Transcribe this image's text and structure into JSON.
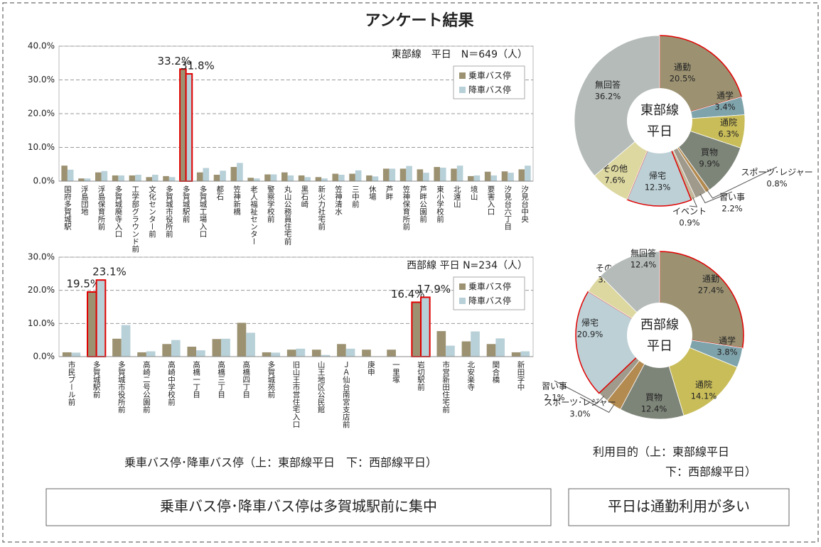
{
  "title": "アンケート結果",
  "captions": [
    "乗車バス停･降車バス停（上：東部線平日　下：西部線平日）",
    "利用目的（上：東部線平日",
    "下：西部線平日）"
  ],
  "summaries": [
    "乗車バス停･降車バス停は多賀城駅前に集中",
    "平日は通勤利用が多い"
  ],
  "chart_data": [
    {
      "type": "bar",
      "annotation": "東部線　平日　N＝649（人）",
      "categories": [
        "国府多賀城駅",
        "浮島団地",
        "浮島保育所前",
        "多賀城廃寺入口",
        "工学部グラウンド前",
        "文化センター前",
        "多賀城市役所前",
        "多賀城駅前",
        "多賀城工場入口",
        "都石",
        "笠神新橋",
        "老人福祉センター",
        "警察学校前",
        "丸山公務員住宅前",
        "黒石崎",
        "新火力社宅前",
        "笠神清水",
        "三中前",
        "休場",
        "芦畔",
        "笠神保育所前",
        "芦畔公園前",
        "東小学校前",
        "北遠山",
        "境山",
        "要害入口",
        "汐見台六丁目",
        "汐見台中央"
      ],
      "series": [
        {
          "name": "乗車バス停",
          "color": "#9c9272",
          "values": [
            4.6,
            0.8,
            2.6,
            1.7,
            1.7,
            1.2,
            1.5,
            33.2,
            2.6,
            1.9,
            4.2,
            1.0,
            2.0,
            2.6,
            1.7,
            1.2,
            2.2,
            2.2,
            1.7,
            3.7,
            3.7,
            3.5,
            4.2,
            3.7,
            1.5,
            2.8,
            2.9,
            3.5
          ],
          "value_labels": [
            null,
            null,
            null,
            null,
            null,
            null,
            null,
            "33.2%",
            null,
            null,
            null,
            null,
            null,
            null,
            null,
            null,
            null,
            null,
            null,
            null,
            null,
            null,
            null,
            null,
            null,
            null,
            null,
            null
          ]
        },
        {
          "name": "降車バス停",
          "color": "#b8d0d8",
          "values": [
            3.4,
            0.8,
            3.0,
            1.7,
            1.9,
            1.9,
            1.2,
            31.8,
            3.9,
            3.1,
            5.4,
            0.8,
            2.0,
            1.7,
            1.2,
            0.8,
            1.9,
            3.2,
            1.4,
            3.7,
            4.5,
            2.5,
            4.0,
            4.6,
            1.7,
            1.7,
            2.5,
            4.6
          ],
          "value_labels": [
            null,
            null,
            null,
            null,
            null,
            null,
            null,
            "31.8%",
            null,
            null,
            null,
            null,
            null,
            null,
            null,
            null,
            null,
            null,
            null,
            null,
            null,
            null,
            null,
            null,
            null,
            null,
            null,
            null
          ]
        }
      ],
      "highlight_categories": [
        "多賀城駅前"
      ],
      "highlight_color": "#e00000",
      "ylim": [
        0,
        40
      ],
      "yticks": [
        {
          "value": 0,
          "label": "0.0%"
        },
        {
          "value": 10,
          "label": "10.0%"
        },
        {
          "value": 20,
          "label": "20.0%"
        },
        {
          "value": 30,
          "label": "30.0%"
        },
        {
          "value": 40,
          "label": "40.0%"
        }
      ],
      "grid": true,
      "legend": "upper right"
    },
    {
      "type": "bar",
      "annotation": "西部線 平日 N=234（人）",
      "categories": [
        "市民プール前",
        "多賀城駅前",
        "多賀城市役所前",
        "高崎二号公園前",
        "高崎中学校前",
        "高橋一丁目",
        "高橋三丁目",
        "高橋四丁目",
        "多賀城苑前",
        "旧山王市営住宅入口",
        "山王地区公民館",
        "ＪＡ仙台南宮支店前",
        "庚申",
        "一里塚",
        "岩切駅前",
        "市営新田住宅前",
        "北安楽寺",
        "関合橋",
        "新田字中"
      ],
      "series": [
        {
          "name": "乗車バス停",
          "color": "#9c9272",
          "values": [
            1.3,
            19.5,
            5.4,
            1.3,
            3.8,
            3.0,
            5.3,
            10.2,
            1.3,
            2.1,
            2.1,
            3.8,
            2.1,
            2.1,
            16.4,
            7.7,
            4.6,
            3.8,
            1.3
          ],
          "value_labels": [
            null,
            "19.5%",
            null,
            null,
            null,
            null,
            null,
            null,
            null,
            null,
            null,
            null,
            null,
            null,
            "16.4%",
            null,
            null,
            null,
            null
          ]
        },
        {
          "name": "降車バス停",
          "color": "#b8d0d8",
          "values": [
            1.2,
            23.1,
            9.5,
            1.6,
            5.0,
            1.9,
            5.4,
            7.2,
            1.2,
            2.4,
            0.5,
            2.4,
            0,
            0,
            17.9,
            3.3,
            7.6,
            5.5,
            1.6
          ],
          "value_labels": [
            null,
            "23.1%",
            null,
            null,
            null,
            null,
            null,
            null,
            null,
            null,
            null,
            null,
            null,
            null,
            "17.9%",
            null,
            null,
            null,
            null
          ]
        }
      ],
      "highlight_categories": [
        "多賀城駅前",
        "岩切駅前"
      ],
      "highlight_color": "#e00000",
      "ylim": [
        0,
        30
      ],
      "yticks": [
        {
          "value": 0,
          "label": "0.0%"
        },
        {
          "value": 10,
          "label": "10.0%"
        },
        {
          "value": 20,
          "label": "20.0%"
        },
        {
          "value": 30,
          "label": "30.0%"
        }
      ],
      "grid": true,
      "legend": "upper right"
    },
    {
      "type": "pie",
      "center_text": [
        "東部線",
        "平日"
      ],
      "categories": [
        "通勤",
        "通学",
        "通院",
        "買物",
        "スポーツ･レジャー",
        "習い事",
        "イベント",
        "帰宅",
        "その他",
        "無回答"
      ],
      "values": [
        20.5,
        3.4,
        6.3,
        9.9,
        0.8,
        2.2,
        0.9,
        12.3,
        7.6,
        36.2
      ],
      "value_labels": [
        "20.5%",
        "3.4%",
        "6.3%",
        "9.9%",
        "0.8%",
        "2.2%",
        "0.9%",
        "12.3%",
        "7.6%",
        "36.2%"
      ],
      "colors": [
        "#9c9272",
        "#7fa3ab",
        "#c9bd5a",
        "#7d8478",
        "#b38a50",
        "#a09a8c",
        "#c4b89c",
        "#bcd0d6",
        "#ddd7a0",
        "#b4bbb8"
      ],
      "highlight_categories": [
        "通勤",
        "帰宅"
      ],
      "highlight_color": "#e00000"
    },
    {
      "type": "pie",
      "center_text": [
        "西部線",
        "平日"
      ],
      "categories": [
        "通勤",
        "通学",
        "通院",
        "買物",
        "スポーツ･レジャー",
        "習い事",
        "帰宅",
        "その他",
        "無回答"
      ],
      "values": [
        27.4,
        3.8,
        14.1,
        12.4,
        3.0,
        2.1,
        20.9,
        3.8,
        12.4
      ],
      "value_labels": [
        "27.4%",
        "3.8%",
        "14.1%",
        "12.4%",
        "3.0%",
        "2.1%",
        "20.9%",
        "3.8%",
        "12.4%"
      ],
      "colors": [
        "#9c9272",
        "#7fa3ab",
        "#c9bd5a",
        "#7d8478",
        "#b38a50",
        "#a09a8c",
        "#bcd0d6",
        "#ddd7a0",
        "#b4bbb8"
      ],
      "highlight_categories": [
        "通勤",
        "帰宅"
      ],
      "highlight_color": "#e00000"
    }
  ]
}
